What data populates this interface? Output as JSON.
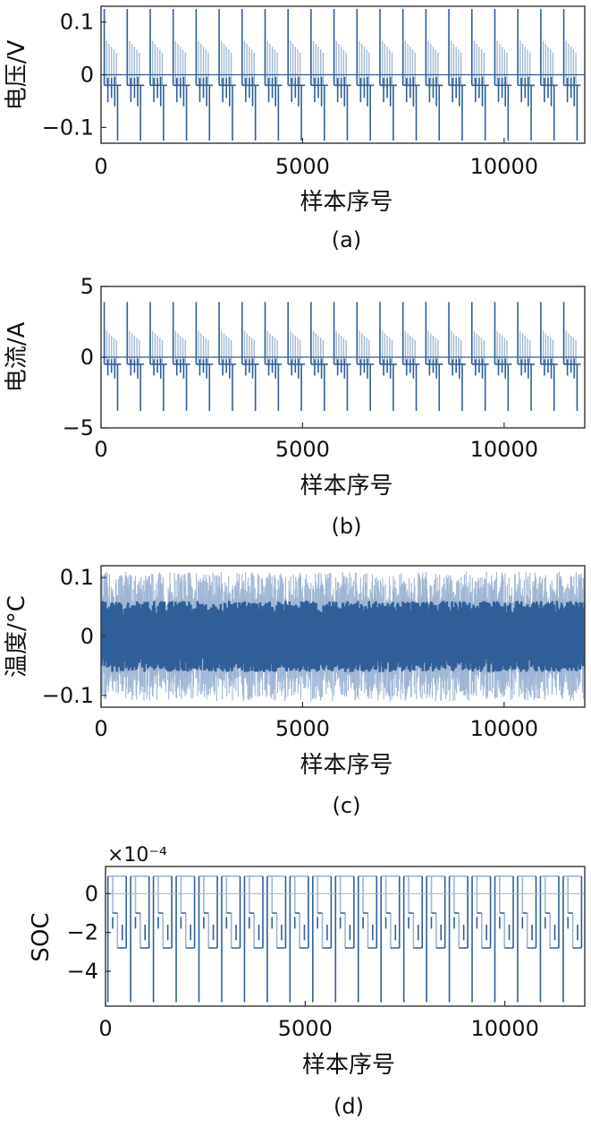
{
  "figure_type": "stacked line plots of signal traces",
  "colors": {
    "line_main": "#2f5f98",
    "line_light": "#9fb5d3",
    "frame": "#333333",
    "text": "#111111"
  },
  "chart_data": [
    {
      "id": "a",
      "type": "line",
      "caption": "(a)",
      "xlabel": "样本序号",
      "ylabel": "电压/V",
      "xlim": [
        0,
        12000
      ],
      "ylim": [
        -0.13,
        0.13
      ],
      "x_ticks": [
        0,
        5000,
        10000
      ],
      "x_tick_labels": [
        "0",
        "5000",
        "10000"
      ],
      "y_ticks": [
        0.1,
        0,
        -0.1
      ],
      "y_tick_labels": [
        "0.1",
        "0",
        "−0.1"
      ],
      "multiplier": "",
      "pattern": "pulse",
      "period": 570,
      "n_cycles": 21,
      "peak_high": 0.125,
      "peak_mid": 0.07,
      "baseline": -0.02,
      "peak_low": -0.125,
      "grid": false,
      "legend": "none"
    },
    {
      "id": "b",
      "type": "line",
      "caption": "(b)",
      "xlabel": "样本序号",
      "ylabel": "电流/A",
      "xlim": [
        0,
        12000
      ],
      "ylim": [
        -5,
        5
      ],
      "x_ticks": [
        0,
        5000,
        10000
      ],
      "x_tick_labels": [
        "0",
        "5000",
        "10000"
      ],
      "y_ticks": [
        5,
        0,
        -5
      ],
      "y_tick_labels": [
        "5",
        "0",
        "−5"
      ],
      "multiplier": "",
      "pattern": "pulse",
      "period": 570,
      "n_cycles": 21,
      "peak_high": 3.9,
      "peak_mid": 2.0,
      "baseline": -0.5,
      "peak_low": -3.8,
      "grid": false,
      "legend": "none"
    },
    {
      "id": "c",
      "type": "line",
      "caption": "(c)",
      "xlabel": "样本序号",
      "ylabel": "温度/°C",
      "xlim": [
        0,
        12000
      ],
      "ylim": [
        -0.12,
        0.12
      ],
      "x_ticks": [
        0,
        5000,
        10000
      ],
      "x_tick_labels": [
        "0",
        "5000",
        "10000"
      ],
      "y_ticks": [
        0.1,
        0,
        -0.1
      ],
      "y_tick_labels": [
        "0.1",
        "0",
        "−0.1"
      ],
      "multiplier": "",
      "pattern": "noise",
      "noise_core": 0.055,
      "noise_peak": 0.11,
      "grid": false,
      "legend": "none"
    },
    {
      "id": "d",
      "type": "line",
      "caption": "(d)",
      "xlabel": "样本序号",
      "ylabel": "SOC",
      "xlim": [
        0,
        12000
      ],
      "ylim": [
        -5.8,
        1.4
      ],
      "x_ticks": [
        0,
        5000,
        10000
      ],
      "x_tick_labels": [
        "0",
        "5000",
        "10000"
      ],
      "y_ticks": [
        0,
        -2,
        -4
      ],
      "y_tick_labels": [
        "0",
        "−2",
        "−4"
      ],
      "multiplier": "×10⁻⁴",
      "pattern": "soc",
      "period": 570,
      "n_cycles": 21,
      "peak_high": 0.9,
      "step": -1.0,
      "low_step": -2.8,
      "peak_low": -5.6,
      "grid": false,
      "legend": "none"
    }
  ]
}
